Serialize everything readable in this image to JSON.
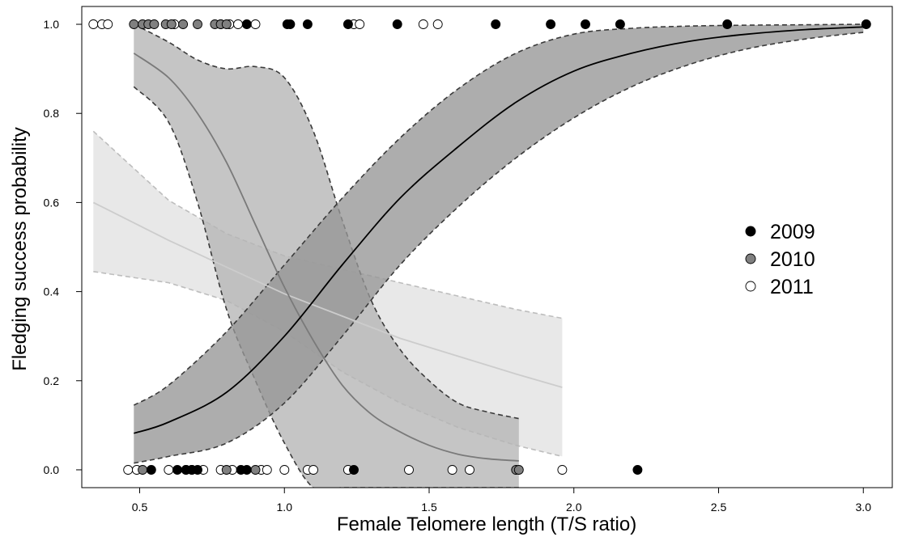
{
  "chart_data": {
    "type": "scatter",
    "title": "",
    "xlabel": "Female Telomere length (T/S ratio)",
    "ylabel": "Fledging success probability",
    "xlim": [
      0.3,
      3.1
    ],
    "ylim": [
      -0.04,
      1.04
    ],
    "x_ticks": [
      0.5,
      1.0,
      1.5,
      2.0,
      2.5,
      3.0
    ],
    "x_tick_labels": [
      "0.5",
      "1.0",
      "1.5",
      "2.0",
      "2.5",
      "3.0"
    ],
    "y_ticks": [
      0.0,
      0.2,
      0.4,
      0.6,
      0.8,
      1.0
    ],
    "y_tick_labels": [
      "0.0",
      "0.2",
      "0.4",
      "0.6",
      "0.8",
      "1.0"
    ],
    "grid": false,
    "legend_position": "right",
    "series": [
      {
        "name": "2009",
        "marker_fill": "#000000",
        "band_fill": "#969696",
        "line_color": "#000000",
        "points": [
          {
            "x": 0.87,
            "y": 1
          },
          {
            "x": 1.01,
            "y": 1
          },
          {
            "x": 1.02,
            "y": 1
          },
          {
            "x": 1.08,
            "y": 1
          },
          {
            "x": 1.22,
            "y": 1
          },
          {
            "x": 1.39,
            "y": 1
          },
          {
            "x": 1.73,
            "y": 1
          },
          {
            "x": 1.92,
            "y": 1
          },
          {
            "x": 2.04,
            "y": 1
          },
          {
            "x": 2.16,
            "y": 1
          },
          {
            "x": 2.53,
            "y": 1
          },
          {
            "x": 3.01,
            "y": 1
          },
          {
            "x": 0.54,
            "y": 0
          },
          {
            "x": 0.63,
            "y": 0
          },
          {
            "x": 0.66,
            "y": 0
          },
          {
            "x": 0.68,
            "y": 0
          },
          {
            "x": 0.7,
            "y": 0
          },
          {
            "x": 0.85,
            "y": 0
          },
          {
            "x": 0.87,
            "y": 0
          },
          {
            "x": 1.24,
            "y": 0
          },
          {
            "x": 2.22,
            "y": 0
          }
        ],
        "fit": {
          "x": [
            0.48,
            0.6,
            0.8,
            1.0,
            1.2,
            1.4,
            1.6,
            1.8,
            2.0,
            2.2,
            2.4,
            2.6,
            2.8,
            3.0
          ],
          "y": [
            0.082,
            0.107,
            0.174,
            0.3,
            0.46,
            0.61,
            0.725,
            0.825,
            0.895,
            0.935,
            0.962,
            0.978,
            0.988,
            0.994
          ],
          "lower": [
            0.015,
            0.03,
            0.06,
            0.15,
            0.3,
            0.46,
            0.59,
            0.7,
            0.79,
            0.86,
            0.91,
            0.945,
            0.967,
            0.982
          ],
          "upper": [
            0.145,
            0.19,
            0.31,
            0.46,
            0.61,
            0.745,
            0.855,
            0.935,
            0.978,
            0.991,
            0.996,
            0.998,
            0.999,
            1.0
          ]
        }
      },
      {
        "name": "2010",
        "marker_fill": "#808080",
        "band_fill": "#b5b5b5",
        "line_color": "#7a7a7a",
        "points": [
          {
            "x": 0.48,
            "y": 1
          },
          {
            "x": 0.51,
            "y": 1
          },
          {
            "x": 0.53,
            "y": 1
          },
          {
            "x": 0.55,
            "y": 1
          },
          {
            "x": 0.59,
            "y": 1
          },
          {
            "x": 0.61,
            "y": 1
          },
          {
            "x": 0.65,
            "y": 1
          },
          {
            "x": 0.7,
            "y": 1
          },
          {
            "x": 0.76,
            "y": 1
          },
          {
            "x": 0.78,
            "y": 1
          },
          {
            "x": 0.8,
            "y": 1
          },
          {
            "x": 0.51,
            "y": 0
          },
          {
            "x": 0.66,
            "y": 0
          },
          {
            "x": 0.68,
            "y": 0
          },
          {
            "x": 0.8,
            "y": 0
          },
          {
            "x": 0.9,
            "y": 0
          },
          {
            "x": 1.8,
            "y": 0
          },
          {
            "x": 1.81,
            "y": 0
          }
        ],
        "fit": {
          "x": [
            0.48,
            0.6,
            0.7,
            0.8,
            0.9,
            1.0,
            1.1,
            1.2,
            1.3,
            1.4,
            1.5,
            1.6,
            1.7,
            1.81
          ],
          "y": [
            0.935,
            0.88,
            0.8,
            0.69,
            0.55,
            0.41,
            0.29,
            0.19,
            0.125,
            0.085,
            0.055,
            0.035,
            0.025,
            0.02
          ],
          "lower": [
            0.86,
            0.78,
            0.6,
            0.36,
            0.2,
            0.06,
            -0.04,
            -0.04,
            -0.04,
            -0.04,
            -0.04,
            -0.04,
            -0.04,
            -0.04
          ],
          "upper": [
            1.0,
            0.96,
            0.92,
            0.9,
            0.905,
            0.88,
            0.76,
            0.56,
            0.38,
            0.27,
            0.2,
            0.15,
            0.13,
            0.115
          ]
        }
      },
      {
        "name": "2011",
        "marker_fill": "#ffffff",
        "band_fill": "#e2e2e2",
        "line_color": "#cccccc",
        "points": [
          {
            "x": 0.34,
            "y": 1
          },
          {
            "x": 0.37,
            "y": 1
          },
          {
            "x": 0.39,
            "y": 1
          },
          {
            "x": 0.62,
            "y": 1
          },
          {
            "x": 0.78,
            "y": 1
          },
          {
            "x": 0.81,
            "y": 1
          },
          {
            "x": 0.84,
            "y": 1
          },
          {
            "x": 0.9,
            "y": 1
          },
          {
            "x": 1.24,
            "y": 1
          },
          {
            "x": 1.26,
            "y": 1
          },
          {
            "x": 1.48,
            "y": 1
          },
          {
            "x": 1.53,
            "y": 1
          },
          {
            "x": 0.46,
            "y": 0
          },
          {
            "x": 0.49,
            "y": 0
          },
          {
            "x": 0.6,
            "y": 0
          },
          {
            "x": 0.72,
            "y": 0
          },
          {
            "x": 0.78,
            "y": 0
          },
          {
            "x": 0.82,
            "y": 0
          },
          {
            "x": 0.92,
            "y": 0
          },
          {
            "x": 0.94,
            "y": 0
          },
          {
            "x": 1.0,
            "y": 0
          },
          {
            "x": 1.08,
            "y": 0
          },
          {
            "x": 1.1,
            "y": 0
          },
          {
            "x": 1.22,
            "y": 0
          },
          {
            "x": 1.43,
            "y": 0
          },
          {
            "x": 1.58,
            "y": 0
          },
          {
            "x": 1.64,
            "y": 0
          },
          {
            "x": 1.96,
            "y": 0
          }
        ],
        "fit": {
          "x": [
            0.34,
            0.6,
            0.8,
            1.0,
            1.2,
            1.4,
            1.6,
            1.8,
            1.96
          ],
          "y": [
            0.6,
            0.515,
            0.455,
            0.395,
            0.345,
            0.295,
            0.255,
            0.215,
            0.185
          ],
          "lower": [
            0.445,
            0.42,
            0.38,
            0.31,
            0.22,
            0.15,
            0.095,
            0.055,
            0.03
          ],
          "upper": [
            0.76,
            0.605,
            0.53,
            0.48,
            0.45,
            0.42,
            0.39,
            0.36,
            0.34
          ]
        }
      }
    ]
  }
}
